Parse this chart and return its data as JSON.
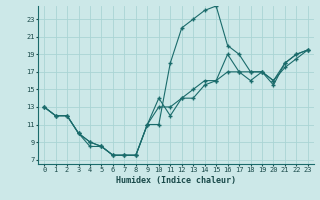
{
  "xlabel": "Humidex (Indice chaleur)",
  "xlim": [
    -0.5,
    23.5
  ],
  "ylim": [
    6.5,
    24.5
  ],
  "xticks": [
    0,
    1,
    2,
    3,
    4,
    5,
    6,
    7,
    8,
    9,
    10,
    11,
    12,
    13,
    14,
    15,
    16,
    17,
    18,
    19,
    20,
    21,
    22,
    23
  ],
  "yticks": [
    7,
    9,
    11,
    13,
    15,
    17,
    19,
    21,
    23
  ],
  "background_color": "#cce8e8",
  "grid_color": "#aad4d4",
  "line_color": "#1a6b6b",
  "line1_x": [
    0,
    1,
    2,
    3,
    4,
    5,
    6,
    7,
    8,
    9,
    10,
    11,
    12,
    13,
    14,
    15,
    16,
    17,
    18,
    19,
    20,
    21,
    22,
    23
  ],
  "line1_y": [
    13,
    12,
    12,
    10,
    8.5,
    8.5,
    7.5,
    7.5,
    7.5,
    11,
    11,
    18,
    22,
    23,
    24,
    24.5,
    20,
    19,
    17,
    17,
    16,
    18,
    19,
    19.5
  ],
  "line2_x": [
    0,
    1,
    2,
    3,
    4,
    5,
    6,
    7,
    8,
    9,
    10,
    11,
    12,
    13,
    14,
    15,
    16,
    17,
    18,
    19,
    20,
    21,
    22,
    23
  ],
  "line2_y": [
    13,
    12,
    12,
    10,
    9,
    8.5,
    7.5,
    7.5,
    7.5,
    11,
    14,
    12,
    14,
    14,
    15.5,
    16,
    19,
    17,
    16,
    17,
    15.5,
    18,
    19,
    19.5
  ],
  "line3_x": [
    0,
    1,
    2,
    3,
    4,
    5,
    6,
    7,
    8,
    9,
    10,
    11,
    12,
    13,
    14,
    15,
    16,
    17,
    18,
    19,
    20,
    21,
    22,
    23
  ],
  "line3_y": [
    13,
    12,
    12,
    10,
    9,
    8.5,
    7.5,
    7.5,
    7.5,
    11,
    13,
    13,
    14,
    15,
    16,
    16,
    17,
    17,
    17,
    17,
    16,
    17.5,
    18.5,
    19.5
  ]
}
